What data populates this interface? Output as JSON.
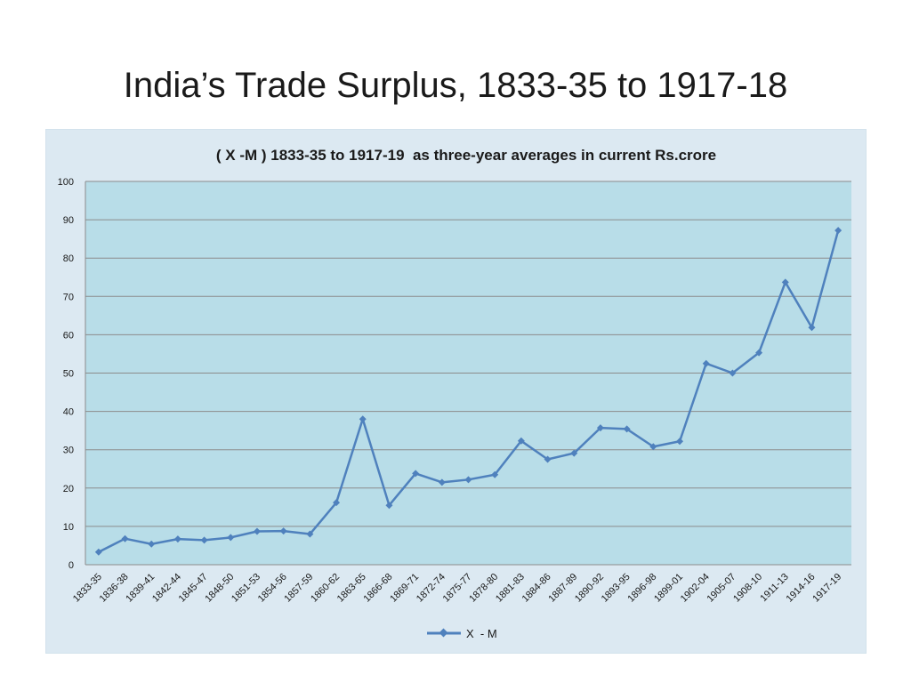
{
  "slide": {
    "title": "India’s Trade Surplus, 1833-35 to 1917-18"
  },
  "chart_data": {
    "type": "line",
    "title": "( X -M ) 1833-35 to 1917-19  as three-year averages in current Rs.crore",
    "xlabel": "",
    "ylabel": "",
    "ylim": [
      0,
      100
    ],
    "yticks": [
      0,
      10,
      20,
      30,
      40,
      50,
      60,
      70,
      80,
      90,
      100
    ],
    "grid": true,
    "legend_position": "bottom",
    "categories": [
      "1833-35",
      "1836-38",
      "1839-41",
      "1842-44",
      "1845-47",
      "1848-50",
      "1851-53",
      "1854-56",
      "1857-59",
      "1860-62",
      "1863-65",
      "1866-68",
      "1869-71",
      "1872-74",
      "1875-77",
      "1878-80",
      "1881-83",
      "1884-86",
      "1887-89",
      "1890-92",
      "1893-95",
      "1896-98",
      "1899-01",
      "1902-04",
      "1905-07",
      "1908-10",
      "1911-13",
      "1914-16",
      "1917-19"
    ],
    "series": [
      {
        "name": "X  - M",
        "color": "#4f81bd",
        "values": [
          3.3,
          6.8,
          5.4,
          6.7,
          6.4,
          7.1,
          8.7,
          8.8,
          8.0,
          16.2,
          38.0,
          15.5,
          23.8,
          21.5,
          22.2,
          23.5,
          32.3,
          27.5,
          29.1,
          35.7,
          35.4,
          30.8,
          32.2,
          52.5,
          50.0,
          55.3,
          73.7,
          61.9,
          87.2
        ]
      }
    ],
    "colors": {
      "plot_background": "#b8dde8",
      "frame_background": "#dce9f2",
      "gridline": "#8c8c8c"
    }
  }
}
